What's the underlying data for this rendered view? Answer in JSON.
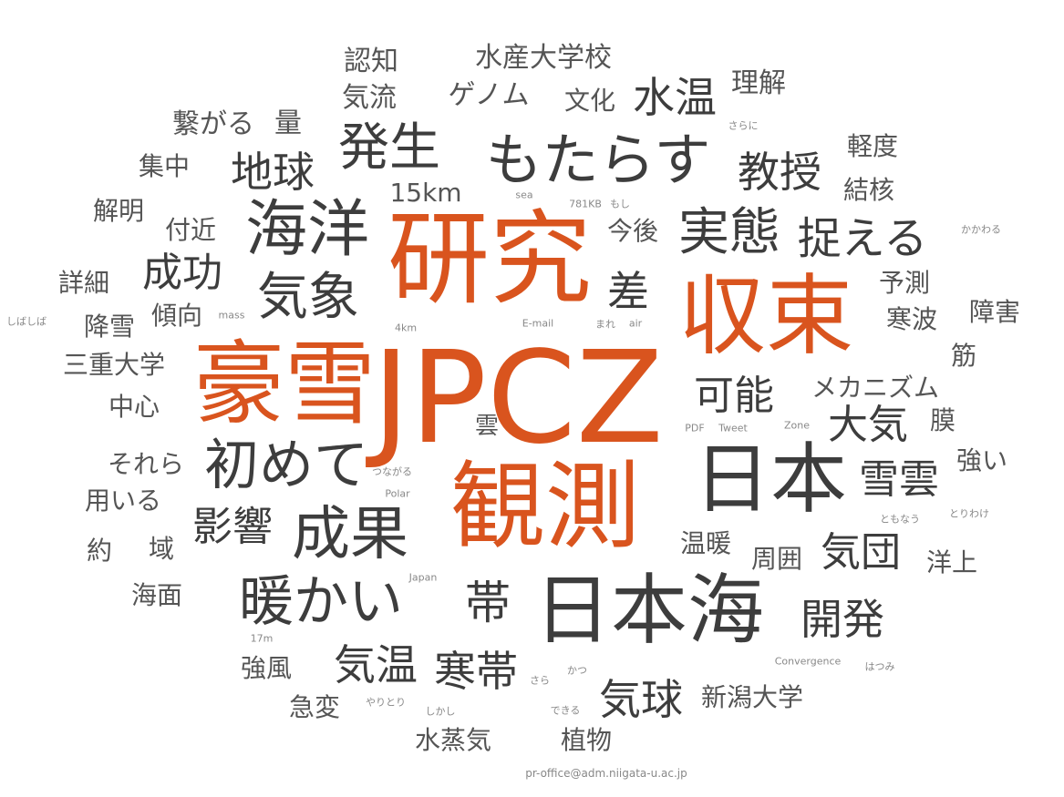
{
  "colors": {
    "accent": "#d9541e",
    "dark": "#3d3d3d",
    "mid": "#555555",
    "light": "#888888"
  },
  "words": [
    {
      "text": "JPCZ",
      "level": "accent"
    },
    {
      "text": "研究",
      "level": "accent"
    },
    {
      "text": "豪雪",
      "level": "accent"
    },
    {
      "text": "観測",
      "level": "accent"
    },
    {
      "text": "収束",
      "level": "accent"
    },
    {
      "text": "日本海",
      "level": "dark"
    },
    {
      "text": "日本",
      "level": "dark"
    },
    {
      "text": "もたらす",
      "level": "dark"
    },
    {
      "text": "海洋",
      "level": "dark"
    },
    {
      "text": "発生",
      "level": "dark"
    },
    {
      "text": "成果",
      "level": "dark"
    },
    {
      "text": "初めて",
      "level": "dark"
    },
    {
      "text": "暖かい",
      "level": "dark"
    },
    {
      "text": "気象",
      "level": "dark"
    },
    {
      "text": "実態",
      "level": "dark"
    },
    {
      "text": "捉える",
      "level": "dark"
    },
    {
      "text": "水温",
      "level": "dark"
    },
    {
      "text": "地球",
      "level": "dark"
    },
    {
      "text": "成功",
      "level": "dark"
    },
    {
      "text": "教授",
      "level": "dark"
    },
    {
      "text": "帯",
      "level": "dark"
    },
    {
      "text": "差",
      "level": "dark"
    },
    {
      "text": "可能",
      "level": "dark"
    },
    {
      "text": "大気",
      "level": "dark"
    },
    {
      "text": "雪雲",
      "level": "dark"
    },
    {
      "text": "影響",
      "level": "dark"
    },
    {
      "text": "気温",
      "level": "dark"
    },
    {
      "text": "寒帯",
      "level": "dark"
    },
    {
      "text": "開発",
      "level": "dark"
    },
    {
      "text": "気球",
      "level": "dark"
    },
    {
      "text": "気団",
      "level": "dark"
    },
    {
      "text": "15km",
      "level": "mid"
    },
    {
      "text": "水産大学校",
      "level": "mid"
    },
    {
      "text": "ゲノム",
      "level": "mid"
    },
    {
      "text": "認知",
      "level": "mid"
    },
    {
      "text": "気流",
      "level": "mid"
    },
    {
      "text": "文化",
      "level": "mid"
    },
    {
      "text": "理解",
      "level": "mid"
    },
    {
      "text": "繋がる",
      "level": "mid"
    },
    {
      "text": "量",
      "level": "mid"
    },
    {
      "text": "集中",
      "level": "mid"
    },
    {
      "text": "軽度",
      "level": "mid"
    },
    {
      "text": "結核",
      "level": "mid"
    },
    {
      "text": "解明",
      "level": "mid"
    },
    {
      "text": "付近",
      "level": "mid"
    },
    {
      "text": "今後",
      "level": "mid"
    },
    {
      "text": "詳細",
      "level": "mid"
    },
    {
      "text": "予測",
      "level": "mid"
    },
    {
      "text": "傾向",
      "level": "mid"
    },
    {
      "text": "降雪",
      "level": "mid"
    },
    {
      "text": "寒波",
      "level": "mid"
    },
    {
      "text": "障害",
      "level": "mid"
    },
    {
      "text": "三重大学",
      "level": "mid"
    },
    {
      "text": "筋",
      "level": "mid"
    },
    {
      "text": "メカニズム",
      "level": "mid"
    },
    {
      "text": "中心",
      "level": "mid"
    },
    {
      "text": "膜",
      "level": "mid"
    },
    {
      "text": "雲",
      "level": "mid"
    },
    {
      "text": "それら",
      "level": "mid"
    },
    {
      "text": "強い",
      "level": "mid"
    },
    {
      "text": "用いる",
      "level": "mid"
    },
    {
      "text": "約",
      "level": "mid"
    },
    {
      "text": "域",
      "level": "mid"
    },
    {
      "text": "温暖",
      "level": "mid"
    },
    {
      "text": "周囲",
      "level": "mid"
    },
    {
      "text": "洋上",
      "level": "mid"
    },
    {
      "text": "海面",
      "level": "mid"
    },
    {
      "text": "強風",
      "level": "mid"
    },
    {
      "text": "急変",
      "level": "mid"
    },
    {
      "text": "新潟大学",
      "level": "mid"
    },
    {
      "text": "水蒸気",
      "level": "mid"
    },
    {
      "text": "植物",
      "level": "mid"
    },
    {
      "text": "さらに",
      "level": "light"
    },
    {
      "text": "sea",
      "level": "light"
    },
    {
      "text": "781KB",
      "level": "light"
    },
    {
      "text": "もし",
      "level": "light"
    },
    {
      "text": "かかわる",
      "level": "light"
    },
    {
      "text": "しばしば",
      "level": "light"
    },
    {
      "text": "mass",
      "level": "light"
    },
    {
      "text": "4km",
      "level": "light"
    },
    {
      "text": "E-mail",
      "level": "light"
    },
    {
      "text": "まれ",
      "level": "light"
    },
    {
      "text": "air",
      "level": "light"
    },
    {
      "text": "PDF",
      "level": "light"
    },
    {
      "text": "Tweet",
      "level": "light"
    },
    {
      "text": "Zone",
      "level": "light"
    },
    {
      "text": "つながる",
      "level": "light"
    },
    {
      "text": "Polar",
      "level": "light"
    },
    {
      "text": "ともなう",
      "level": "light"
    },
    {
      "text": "とりわけ",
      "level": "light"
    },
    {
      "text": "Japan",
      "level": "light"
    },
    {
      "text": "17m",
      "level": "light"
    },
    {
      "text": "Convergence",
      "level": "light"
    },
    {
      "text": "はつみ",
      "level": "light"
    },
    {
      "text": "かつ",
      "level": "light"
    },
    {
      "text": "さら",
      "level": "light"
    },
    {
      "text": "やりとり",
      "level": "light"
    },
    {
      "text": "しかし",
      "level": "light"
    },
    {
      "text": "できる",
      "level": "light"
    },
    {
      "text": "pr-office@adm.niigata-u.ac.jp",
      "level": "light"
    }
  ]
}
